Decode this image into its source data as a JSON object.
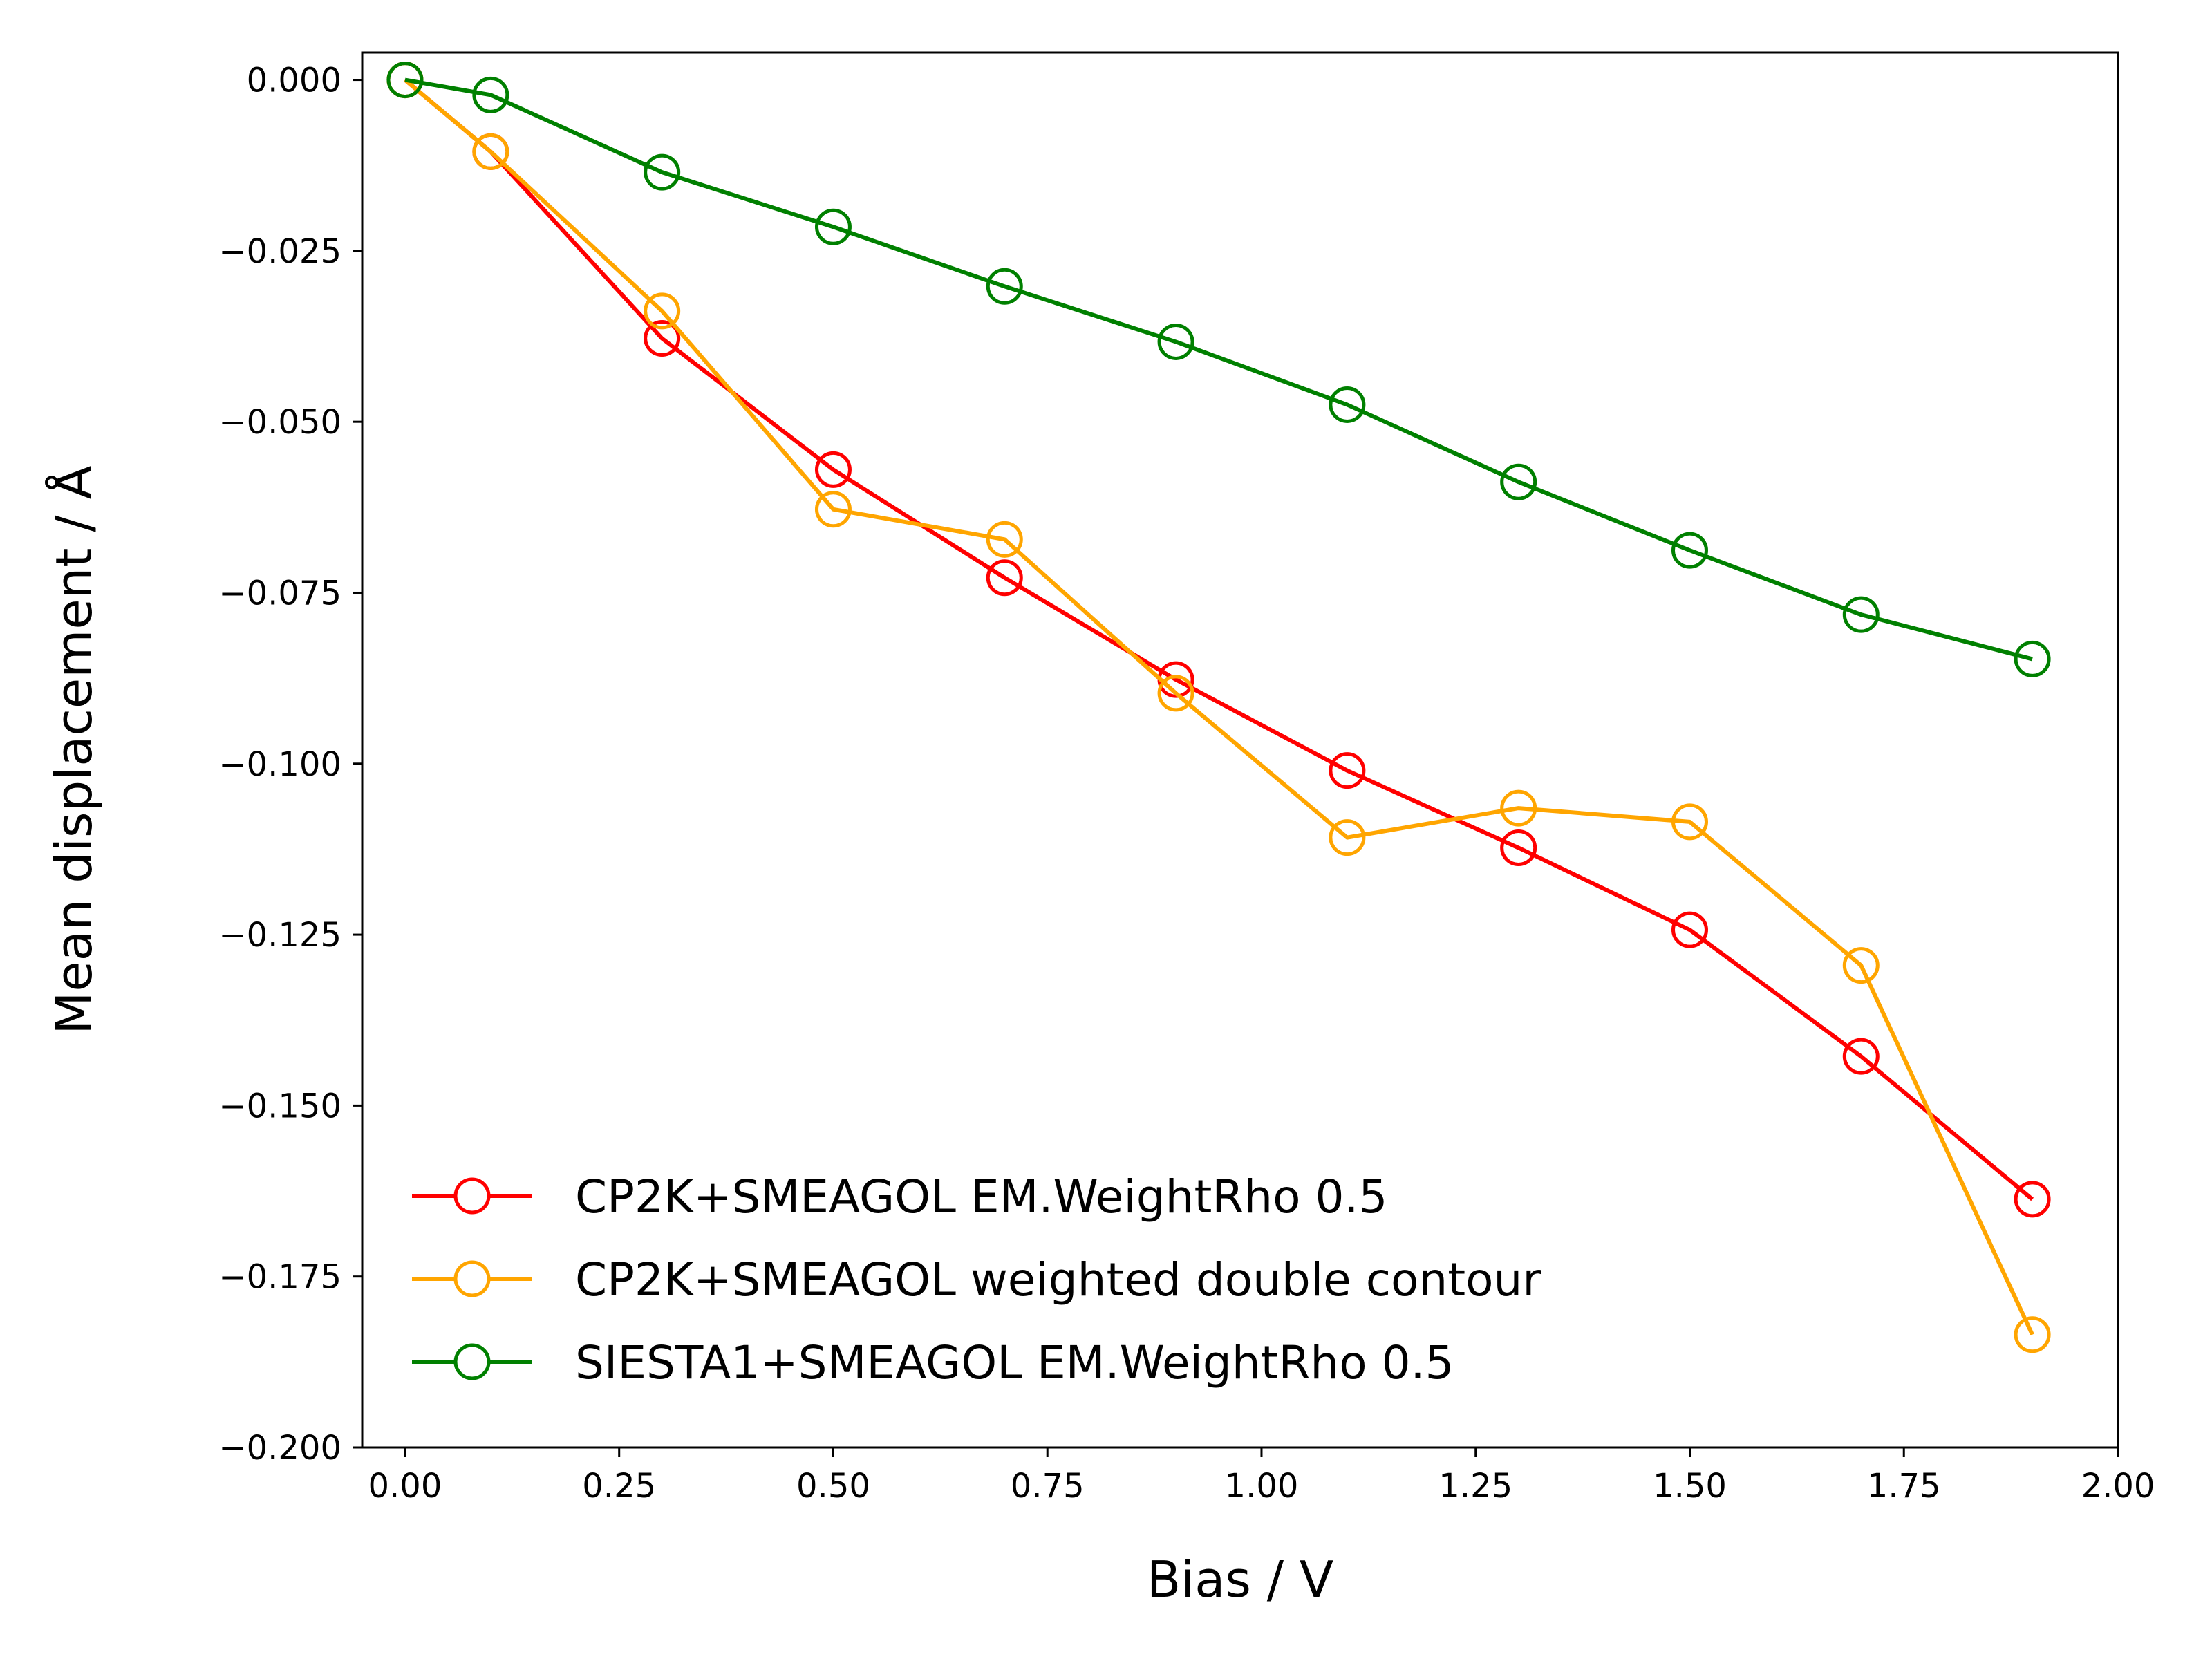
{
  "chart_data": {
    "type": "line",
    "title": "",
    "xlabel": "Bias / V",
    "ylabel": "Mean displacement / Å",
    "xlim": [
      -0.05,
      2.0
    ],
    "ylim": [
      -0.2,
      0.004
    ],
    "xticks": [
      0.0,
      0.25,
      0.5,
      0.75,
      1.0,
      1.25,
      1.5,
      1.75,
      2.0
    ],
    "xtick_labels": [
      "0.00",
      "0.25",
      "0.50",
      "0.75",
      "1.00",
      "1.25",
      "1.50",
      "1.75",
      "2.00"
    ],
    "yticks": [
      0.0,
      -0.025,
      -0.05,
      -0.075,
      -0.1,
      -0.125,
      -0.15,
      -0.175,
      -0.2
    ],
    "ytick_labels": [
      "0.000",
      "−0.025",
      "−0.050",
      "−0.075",
      "−0.100",
      "−0.125",
      "−0.150",
      "−0.175",
      "−0.200"
    ],
    "grid": false,
    "legend_position": "lower-left",
    "marker": "open-circle",
    "x": [
      0.0,
      0.1,
      0.3,
      0.5,
      0.7,
      0.9,
      1.1,
      1.3,
      1.5,
      1.7,
      1.9
    ],
    "series": [
      {
        "name": "CP2K+SMEAGOL EM.WeightRho 0.5",
        "color": "#ff0000",
        "values": [
          0.0,
          -0.0105,
          -0.0378,
          -0.057,
          -0.0728,
          -0.0877,
          -0.101,
          -0.1123,
          -0.1243,
          -0.1428,
          -0.1637
        ]
      },
      {
        "name": "CP2K+SMEAGOL weighted double contour",
        "color": "#ffa500",
        "values": [
          0.0,
          -0.0105,
          -0.0338,
          -0.0628,
          -0.0672,
          -0.0897,
          -0.1108,
          -0.1065,
          -0.1085,
          -0.1295,
          -0.1835
        ]
      },
      {
        "name": "SIESTA1+SMEAGOL EM.WeightRho 0.5",
        "color": "#008000",
        "values": [
          0.0,
          -0.0022,
          -0.0135,
          -0.0215,
          -0.0302,
          -0.0383,
          -0.0475,
          -0.0588,
          -0.0688,
          -0.0782,
          -0.0847
        ]
      }
    ]
  }
}
